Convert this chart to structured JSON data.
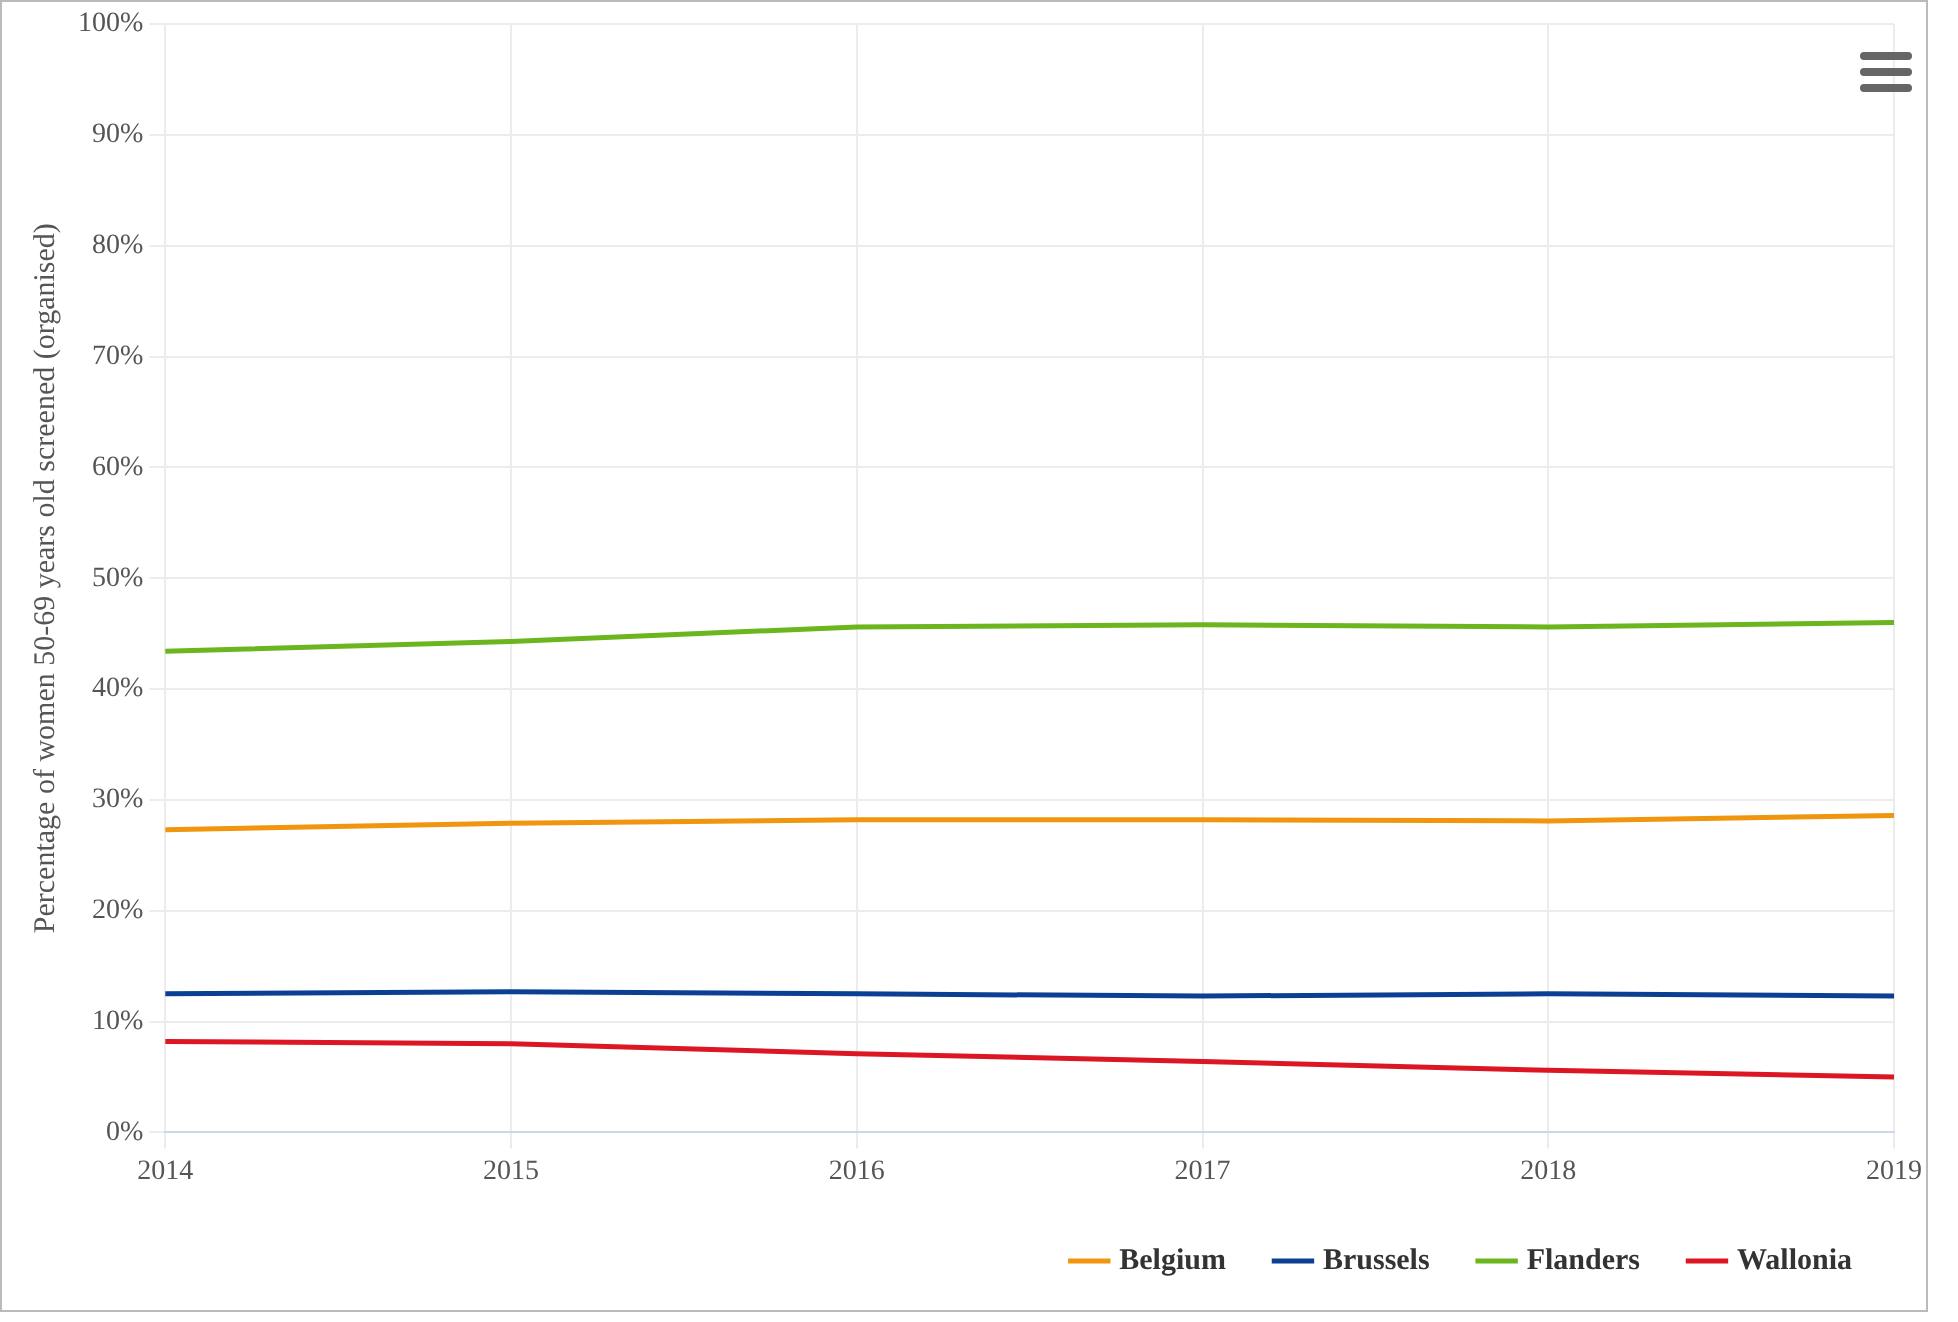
{
  "chart_data": {
    "type": "line",
    "ylabel": "Percentage of women 50-69 years old screened (organised)",
    "categories": [
      "2014",
      "2015",
      "2016",
      "2017",
      "2018",
      "2019"
    ],
    "series": [
      {
        "name": "Belgium",
        "color": "#f0950e",
        "values": [
          27.3,
          27.9,
          28.2,
          28.2,
          28.1,
          28.6
        ]
      },
      {
        "name": "Brussels",
        "color": "#0b3f93",
        "values": [
          12.5,
          12.7,
          12.5,
          12.3,
          12.5,
          12.3
        ]
      },
      {
        "name": "Flanders",
        "color": "#6bb51f",
        "values": [
          43.4,
          44.3,
          45.6,
          45.8,
          45.6,
          46.0
        ]
      },
      {
        "name": "Wallonia",
        "color": "#dd1624",
        "values": [
          8.2,
          8.0,
          7.1,
          6.4,
          5.6,
          5.0
        ]
      }
    ],
    "ylim": [
      0,
      100
    ],
    "yticks": [
      {
        "value": 0,
        "label": "0%"
      },
      {
        "value": 10,
        "label": "10%"
      },
      {
        "value": 20,
        "label": "20%"
      },
      {
        "value": 30,
        "label": "30%"
      },
      {
        "value": 40,
        "label": "40%"
      },
      {
        "value": 50,
        "label": "50%"
      },
      {
        "value": 60,
        "label": "60%"
      },
      {
        "value": 70,
        "label": "70%"
      },
      {
        "value": 80,
        "label": "80%"
      },
      {
        "value": 90,
        "label": "90%"
      },
      {
        "value": 100,
        "label": "100%"
      }
    ],
    "grid": true,
    "legend": "bottom right",
    "marker": "none",
    "line_style": "solid"
  }
}
